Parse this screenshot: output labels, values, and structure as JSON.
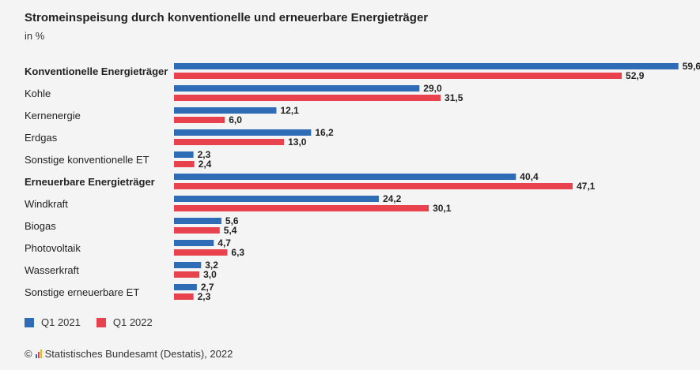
{
  "header": {
    "title": "Stromeinspeisung durch konventionelle und erneuerbare Energieträger",
    "subtitle": "in %"
  },
  "colors": {
    "q1_2021": "#2e6db5",
    "q1_2022": "#e9424f"
  },
  "legend": [
    {
      "label": "Q1 2021",
      "color": "#2e6db5"
    },
    {
      "label": "Q1 2022",
      "color": "#e9424f"
    }
  ],
  "source": {
    "copyright": "©",
    "text": "Statistisches Bundesamt (Destatis), 2022"
  },
  "chart_data": {
    "type": "bar",
    "orientation": "horizontal",
    "categories": [
      "Konventionelle Energieträger",
      "Kohle",
      "Kernenergie",
      "Erdgas",
      "Sonstige konventionelle ET",
      "Erneuerbare Energieträger",
      "Windkraft",
      "Biogas",
      "Photovoltaik",
      "Wasserkraft",
      "Sonstige erneuerbare ET"
    ],
    "bold_categories": [
      "Konventionelle Energieträger",
      "Erneuerbare Energieträger"
    ],
    "series": [
      {
        "name": "Q1 2021",
        "values": [
          59.6,
          29.0,
          12.1,
          16.2,
          2.3,
          40.4,
          24.2,
          5.6,
          4.7,
          3.2,
          2.7
        ],
        "labels": [
          "59,6",
          "29,0",
          "12,1",
          "16,2",
          "2,3",
          "40,4",
          "24,2",
          "5,6",
          "4,7",
          "3,2",
          "2,7"
        ]
      },
      {
        "name": "Q1 2022",
        "values": [
          52.9,
          31.5,
          6.0,
          13.0,
          2.4,
          47.1,
          30.1,
          5.4,
          6.3,
          3.0,
          2.3
        ],
        "labels": [
          "52,9",
          "31,5",
          "6,0",
          "13,0",
          "2,4",
          "47,1",
          "30,1",
          "5,4",
          "6,3",
          "3,0",
          "2,3"
        ]
      }
    ],
    "xlim": [
      0,
      60
    ],
    "grid": false,
    "legend_position": "bottom-left"
  }
}
